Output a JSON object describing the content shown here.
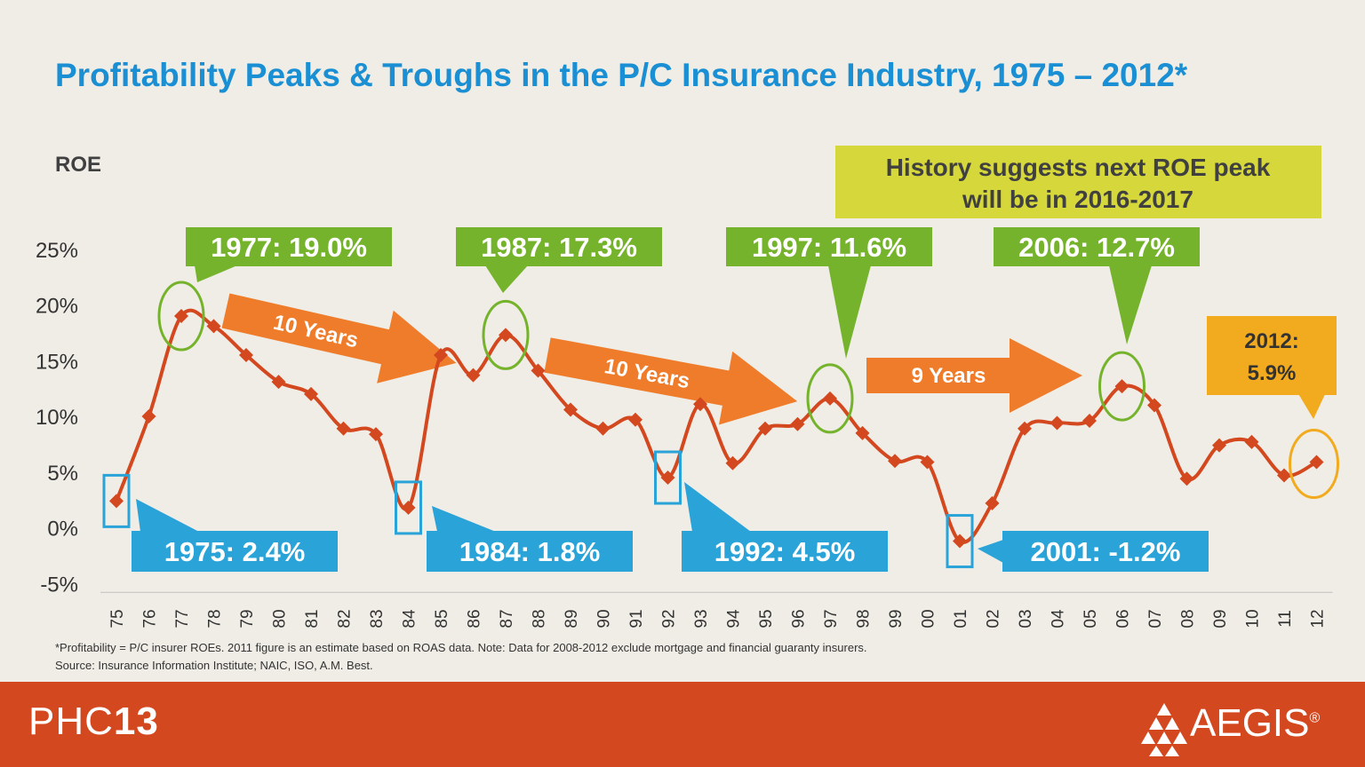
{
  "slide": {
    "title": "Profitability Peaks & Troughs in the P/C Insurance Industry, 1975 – 2012*",
    "subtitle": "ROE",
    "footnote_lines": [
      "*Profitability = P/C insurer ROEs. 2011 figure is an estimate based on ROAS data. Note: Data for 2008-2012 exclude mortgage and financial guaranty insurers.",
      "Source:  Insurance Information Institute; NAIC, ISO, A.M. Best."
    ],
    "footer": {
      "brand_light": "PHC",
      "brand_bold": "13",
      "logo_text": "AEGIS",
      "registered_mark": "®"
    }
  },
  "colors": {
    "title": "#1a8fd3",
    "line": "#d4481f",
    "marker": "#d4481f",
    "peak_box": "#76b32c",
    "trough_box": "#2aa3d8",
    "arrow": "#ef7c2b",
    "forecast_box": "#d5d73a",
    "final_box": "#f2ab1f",
    "footer": "#d4481f"
  },
  "chart_data": {
    "type": "line",
    "ylabel": "",
    "xlabel": "",
    "ylim": [
      -5,
      25
    ],
    "yticks": [
      -5,
      0,
      5,
      10,
      15,
      20,
      25
    ],
    "ytick_labels": [
      "-5%",
      "0%",
      "5%",
      "10%",
      "15%",
      "20%",
      "25%"
    ],
    "x": [
      "75",
      "76",
      "77",
      "78",
      "79",
      "80",
      "81",
      "82",
      "83",
      "84",
      "85",
      "86",
      "87",
      "88",
      "89",
      "90",
      "91",
      "92",
      "93",
      "94",
      "95",
      "96",
      "97",
      "98",
      "99",
      "00",
      "01",
      "02",
      "03",
      "04",
      "05",
      "06",
      "07",
      "08",
      "09",
      "10",
      "11",
      "12"
    ],
    "series": [
      {
        "values": [
          2.4,
          10.0,
          19.0,
          18.1,
          15.5,
          13.1,
          12.0,
          8.9,
          8.4,
          1.8,
          15.5,
          13.7,
          17.3,
          14.1,
          10.6,
          8.9,
          9.7,
          4.5,
          11.1,
          5.8,
          8.9,
          9.3,
          11.6,
          8.5,
          6.0,
          5.9,
          -1.2,
          2.2,
          8.9,
          9.4,
          9.6,
          12.7,
          11.0,
          4.4,
          7.4,
          7.7,
          4.7,
          5.9
        ]
      }
    ],
    "grid": false,
    "annotations": {
      "peaks": [
        {
          "year": "77",
          "label": "1977: 19.0%"
        },
        {
          "year": "87",
          "label": "1987: 17.3%"
        },
        {
          "year": "97",
          "label": "1997: 11.6%"
        },
        {
          "year": "06",
          "label": "2006: 12.7%"
        }
      ],
      "troughs": [
        {
          "year": "75",
          "label": "1975: 2.4%"
        },
        {
          "year": "84",
          "label": "1984: 1.8%"
        },
        {
          "year": "92",
          "label": "1992: 4.5%"
        },
        {
          "year": "01",
          "label": "2001: -1.2%"
        }
      ],
      "intervals": [
        "10 Years",
        "10 Years",
        "9 Years"
      ],
      "forecast": "History suggests next ROE peak will be in 2016-2017",
      "latest": {
        "year": "12",
        "label_line1": "2012:",
        "label_line2": "5.9%"
      }
    }
  }
}
